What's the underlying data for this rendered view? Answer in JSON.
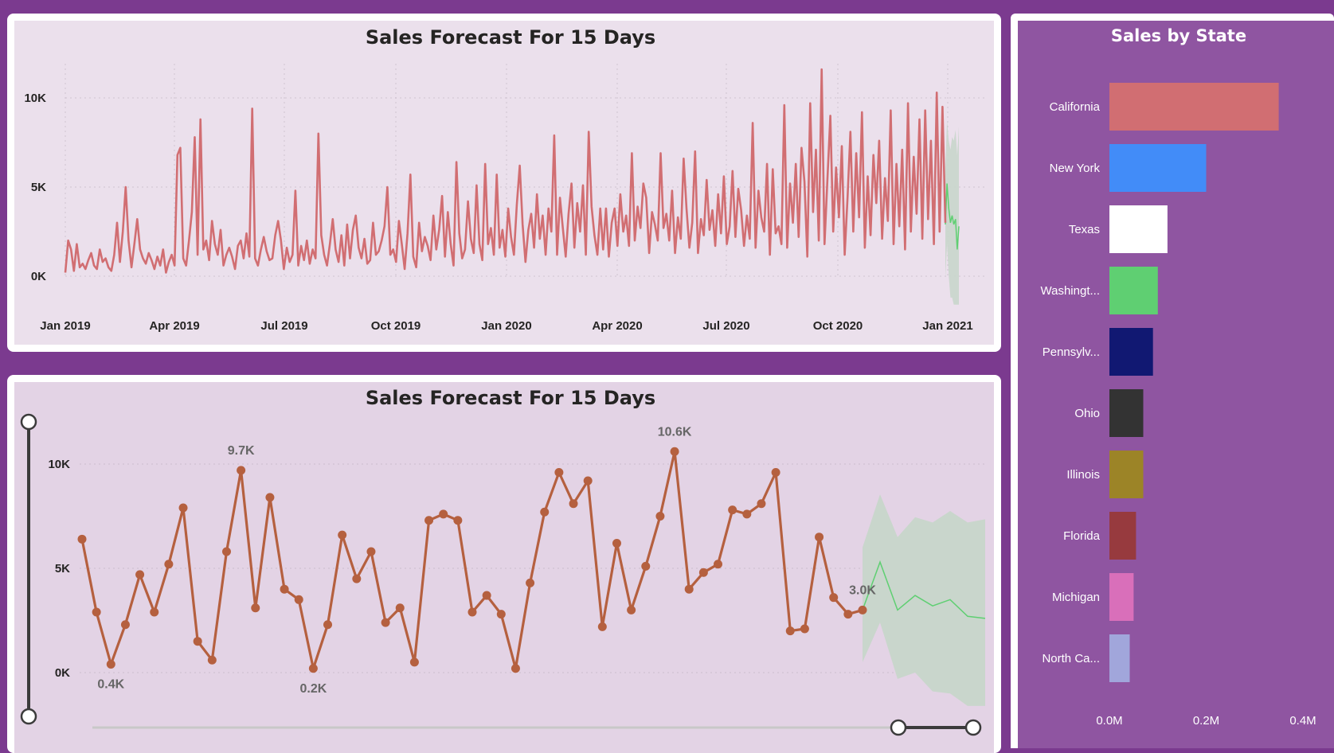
{
  "colors": {
    "background": "#7b3a8f",
    "line_top": "#d16e72",
    "line_bottom": "#b5603f",
    "forecast_line": "#5fcf72",
    "forecast_band": "#c9d6cc",
    "right_panel": "#8f55a1"
  },
  "chart_data": [
    {
      "type": "line",
      "title": "Sales Forecast For 15 Days",
      "x_tick_labels": [
        "Jan 2019",
        "Apr 2019",
        "Jul 2019",
        "Oct 2019",
        "Jan 2020",
        "Apr 2020",
        "Jul 2020",
        "Oct 2020",
        "Jan 2021"
      ],
      "y_tick_labels": [
        "0K",
        "5K",
        "10K"
      ],
      "ylim": [
        0,
        12000
      ],
      "grid": true,
      "series": [
        {
          "values": [
            200,
            2000,
            1500,
            300,
            1800,
            500,
            700,
            400,
            900,
            1300,
            600,
            400,
            1500,
            800,
            1000,
            500,
            300,
            1200,
            3000,
            800,
            2500,
            5000,
            2000,
            500,
            1800,
            3200,
            1500,
            1000,
            700,
            1300,
            900,
            400,
            1100,
            600,
            1500,
            200,
            800,
            1200,
            600,
            6800,
            7200,
            1000,
            600,
            2000,
            3600,
            7800,
            1200,
            8800,
            1500,
            2000,
            900,
            3100,
            1800,
            1200,
            2600,
            600,
            1200,
            1600,
            1100,
            400,
            1700,
            2000,
            1000,
            2400,
            1100,
            9400,
            1000,
            600,
            1500,
            2200,
            1400,
            900,
            1000,
            2300,
            3100,
            2000,
            400,
            1600,
            800,
            1200,
            4800,
            600,
            1700,
            900,
            2000,
            700,
            1500,
            1000,
            8000,
            2300,
            1200,
            600,
            1800,
            3200,
            1500,
            800,
            2300,
            600,
            2900,
            1000,
            2600,
            3400,
            1600,
            1000,
            2100,
            700,
            900,
            3000,
            1200,
            1400,
            2000,
            2800,
            5000,
            1200,
            1500,
            800,
            3100,
            1800,
            400,
            2400,
            5700,
            1100,
            500,
            3000,
            1400,
            2200,
            1700,
            900,
            3400,
            1500,
            2600,
            4500,
            1100,
            3600,
            1800,
            600,
            6400,
            2400,
            1000,
            1500,
            4200,
            2100,
            1300,
            5100,
            1800,
            900,
            6300,
            1800,
            2700,
            1200,
            5700,
            1600,
            2600,
            1100,
            3800,
            2200,
            1200,
            4000,
            6200,
            2900,
            800,
            2600,
            3500,
            1600,
            4600,
            2100,
            3400,
            1200,
            3800,
            2500,
            7900,
            1200,
            4400,
            2700,
            1100,
            3500,
            5200,
            1600,
            4100,
            2500,
            5100,
            1200,
            8100,
            3900,
            2300,
            1200,
            3800,
            1500,
            3800,
            1100,
            3000,
            3800,
            1700,
            4600,
            2500,
            3400,
            1700,
            6900,
            2000,
            3900,
            2700,
            5200,
            4400,
            1300,
            3600,
            2900,
            2000,
            6900,
            2700,
            3500,
            2000,
            4800,
            1300,
            3300,
            2100,
            6600,
            3800,
            1600,
            3000,
            7000,
            1300,
            3200,
            2300,
            5400,
            2600,
            3700,
            1700,
            4600,
            2400,
            5600,
            1800,
            2800,
            5900,
            2200,
            4900,
            3700,
            1700,
            3400,
            2100,
            8600,
            1600,
            4800,
            3300,
            2500,
            6300,
            1200,
            6000,
            2400,
            2800,
            1800,
            9600,
            1600,
            5200,
            3000,
            6300,
            2200,
            7200,
            5300,
            1100,
            9700,
            3600,
            7100,
            2000,
            11600,
            1800,
            5400,
            9000,
            2500,
            6100,
            3300,
            7300,
            1200,
            4400,
            8100,
            2500,
            6900,
            3300,
            9200,
            1600,
            5600,
            2300,
            6800,
            4100,
            7600,
            2100,
            5500,
            3100,
            9300,
            1800,
            6300,
            2800,
            7100,
            1500,
            9700,
            2500,
            6700,
            3500,
            8800,
            2100,
            9300,
            3200,
            7600,
            1800,
            10300,
            2500,
            9500,
            3000
          ]
        },
        {
          "values": [
            2900,
            5200,
            3800,
            3000,
            3400,
            2900,
            3200,
            1500,
            2800
          ]
        }
      ]
    },
    {
      "type": "line",
      "title": "Sales Forecast For 15 Days",
      "y_tick_labels": [
        "0K",
        "5K",
        "10K"
      ],
      "ylim": [
        0,
        10600
      ],
      "grid": true,
      "data_labels": [
        "9.7K",
        "0.4K",
        "0.2K",
        "10.6K",
        "3.0K"
      ],
      "series": [
        {
          "values": [
            6400,
            2900,
            400,
            2300,
            4700,
            2900,
            5200,
            7900,
            1500,
            600,
            5800,
            9700,
            3100,
            8400,
            4000,
            3500,
            200,
            2300,
            6600,
            4500,
            5800,
            2400,
            3100,
            500,
            7300,
            7600,
            7300,
            2900,
            3700,
            2800,
            200,
            4300,
            7700,
            9600,
            8100,
            9200,
            2200,
            6200,
            3000,
            5100,
            7500,
            10600,
            4000,
            4800,
            5200,
            7800,
            7600,
            8100,
            9600,
            2000,
            2100,
            6500,
            3600,
            2800,
            3000
          ]
        },
        {
          "values": [
            3000,
            5300,
            3000,
            3700,
            3200,
            3500,
            2700,
            2600
          ]
        }
      ]
    },
    {
      "type": "bar",
      "orientation": "horizontal",
      "title": "Sales by State",
      "categories": [
        "California",
        "New York",
        "Texas",
        "Washingt...",
        "Pennsylv...",
        "Ohio",
        "Illinois",
        "Florida",
        "Michigan",
        "North Ca..."
      ],
      "values": [
        0.35,
        0.2,
        0.12,
        0.1,
        0.09,
        0.07,
        0.07,
        0.055,
        0.05,
        0.042
      ],
      "colors": [
        "#d16e72",
        "#428cf8",
        "#ffffff",
        "#5fcf72",
        "#111872",
        "#333333",
        "#9c8427",
        "#973a3e",
        "#d96fba",
        "#a1a6db"
      ],
      "x_tick_labels": [
        "0.0M",
        "0.2M",
        "0.4M"
      ],
      "xlim": [
        0,
        0.4
      ]
    }
  ]
}
